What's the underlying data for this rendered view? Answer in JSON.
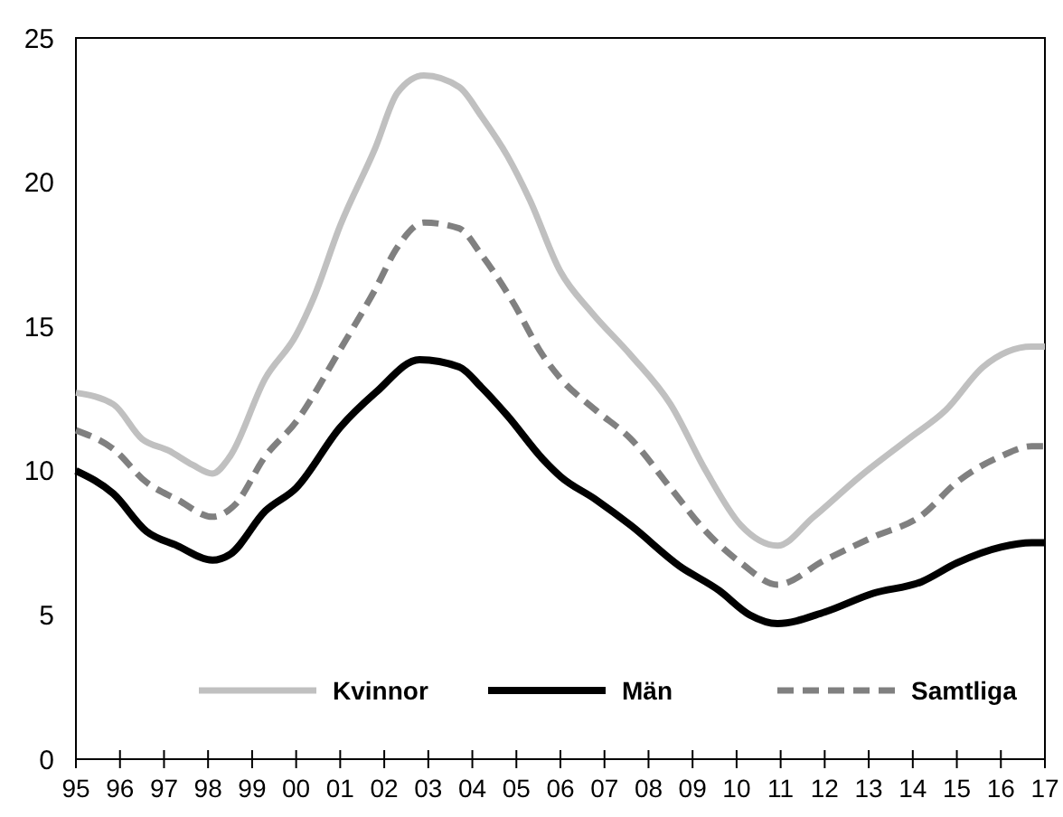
{
  "chart_data": {
    "type": "line",
    "xlim": [
      1995,
      2017
    ],
    "ylim": [
      0,
      25
    ],
    "yticks": [
      0,
      5,
      10,
      15,
      20,
      25
    ],
    "xticks": [
      {
        "value": 1995,
        "label": "95"
      },
      {
        "value": 1996,
        "label": "96"
      },
      {
        "value": 1997,
        "label": "97"
      },
      {
        "value": 1998,
        "label": "98"
      },
      {
        "value": 1999,
        "label": "99"
      },
      {
        "value": 2000,
        "label": "00"
      },
      {
        "value": 2001,
        "label": "01"
      },
      {
        "value": 2002,
        "label": "02"
      },
      {
        "value": 2003,
        "label": "03"
      },
      {
        "value": 2004,
        "label": "04"
      },
      {
        "value": 2005,
        "label": "05"
      },
      {
        "value": 2006,
        "label": "06"
      },
      {
        "value": 2007,
        "label": "07"
      },
      {
        "value": 2008,
        "label": "08"
      },
      {
        "value": 2009,
        "label": "09"
      },
      {
        "value": 2010,
        "label": "10"
      },
      {
        "value": 2011,
        "label": "11"
      },
      {
        "value": 2012,
        "label": "12"
      },
      {
        "value": 2013,
        "label": "13"
      },
      {
        "value": 2014,
        "label": "14"
      },
      {
        "value": 2015,
        "label": "15"
      },
      {
        "value": 2016,
        "label": "16"
      },
      {
        "value": 2017,
        "label": "17"
      }
    ],
    "grid": false,
    "legend": "bottom",
    "series": [
      {
        "name": "Kvinnor",
        "color": "#c0c0c0",
        "line_style": "solid",
        "x": [
          1995,
          1995.85,
          1996.5,
          1997.1,
          1997.65,
          1998.1,
          1998.5,
          1999.3,
          2000,
          2000.4,
          2001,
          2001.8,
          2002.3,
          2002.9,
          2003.7,
          2004.2,
          2004.8,
          2005.3,
          2006,
          2006.7,
          2007.6,
          2008.5,
          2009.3,
          2010.1,
          2010.93,
          2011.75,
          2012.8,
          2013.9,
          2014.75,
          2015.6,
          2016.7,
          2017
        ],
        "values": [
          12.7,
          12.3,
          11.1,
          10.7,
          10.2,
          9.9,
          10.5,
          13.2,
          14.7,
          16,
          18.5,
          21.2,
          23.1,
          23.7,
          23.3,
          22.3,
          20.9,
          19.4,
          16.9,
          15.5,
          14,
          12.3,
          10,
          8.1,
          7.4,
          8.4,
          9.8,
          11.1,
          12.1,
          13.6,
          14.3,
          14.3
        ]
      },
      {
        "name": "Män",
        "color": "#000000",
        "line_style": "solid",
        "x": [
          1995,
          1995.85,
          1996.6,
          1997.3,
          1998.1,
          1998.5,
          1999.3,
          2000,
          2001,
          2001.8,
          2002.8,
          2003.7,
          2004.2,
          2004.8,
          2005.6,
          2006,
          2006.8,
          2007.6,
          2008.7,
          2009.6,
          2010.3,
          2010.93,
          2012,
          2013.1,
          2014.2,
          2015,
          2016,
          2016.7,
          2017
        ],
        "values": [
          10,
          9.2,
          7.9,
          7.4,
          6.9,
          7.1,
          8.6,
          9.4,
          11.5,
          12.7,
          13.85,
          13.6,
          12.9,
          11.9,
          10.4,
          9.8,
          9,
          8.1,
          6.7,
          5.85,
          5,
          4.7,
          5.1,
          5.75,
          6.15,
          6.8,
          7.35,
          7.5,
          7.5
        ]
      },
      {
        "name": "Samtliga",
        "color": "#808080",
        "line_style": "dashed",
        "x": [
          1995,
          1995.85,
          1996.6,
          1997.3,
          1998.1,
          1998.6,
          1999.3,
          2000,
          2001,
          2001.8,
          2002.3,
          2002.9,
          2003.7,
          2004.2,
          2004.9,
          2005.6,
          2006,
          2006.8,
          2007.6,
          2008.5,
          2009.3,
          2010.1,
          2010.93,
          2012,
          2013.1,
          2014.2,
          2015,
          2016,
          2016.7,
          2017
        ],
        "values": [
          11.4,
          10.75,
          9.6,
          9,
          8.4,
          8.8,
          10.5,
          11.7,
          14.2,
          16.3,
          17.75,
          18.6,
          18.4,
          17.5,
          15.9,
          14,
          13.2,
          12.1,
          11.1,
          9.4,
          7.9,
          6.8,
          6.05,
          6.9,
          7.7,
          8.45,
          9.6,
          10.5,
          10.85,
          10.85
        ]
      }
    ]
  }
}
